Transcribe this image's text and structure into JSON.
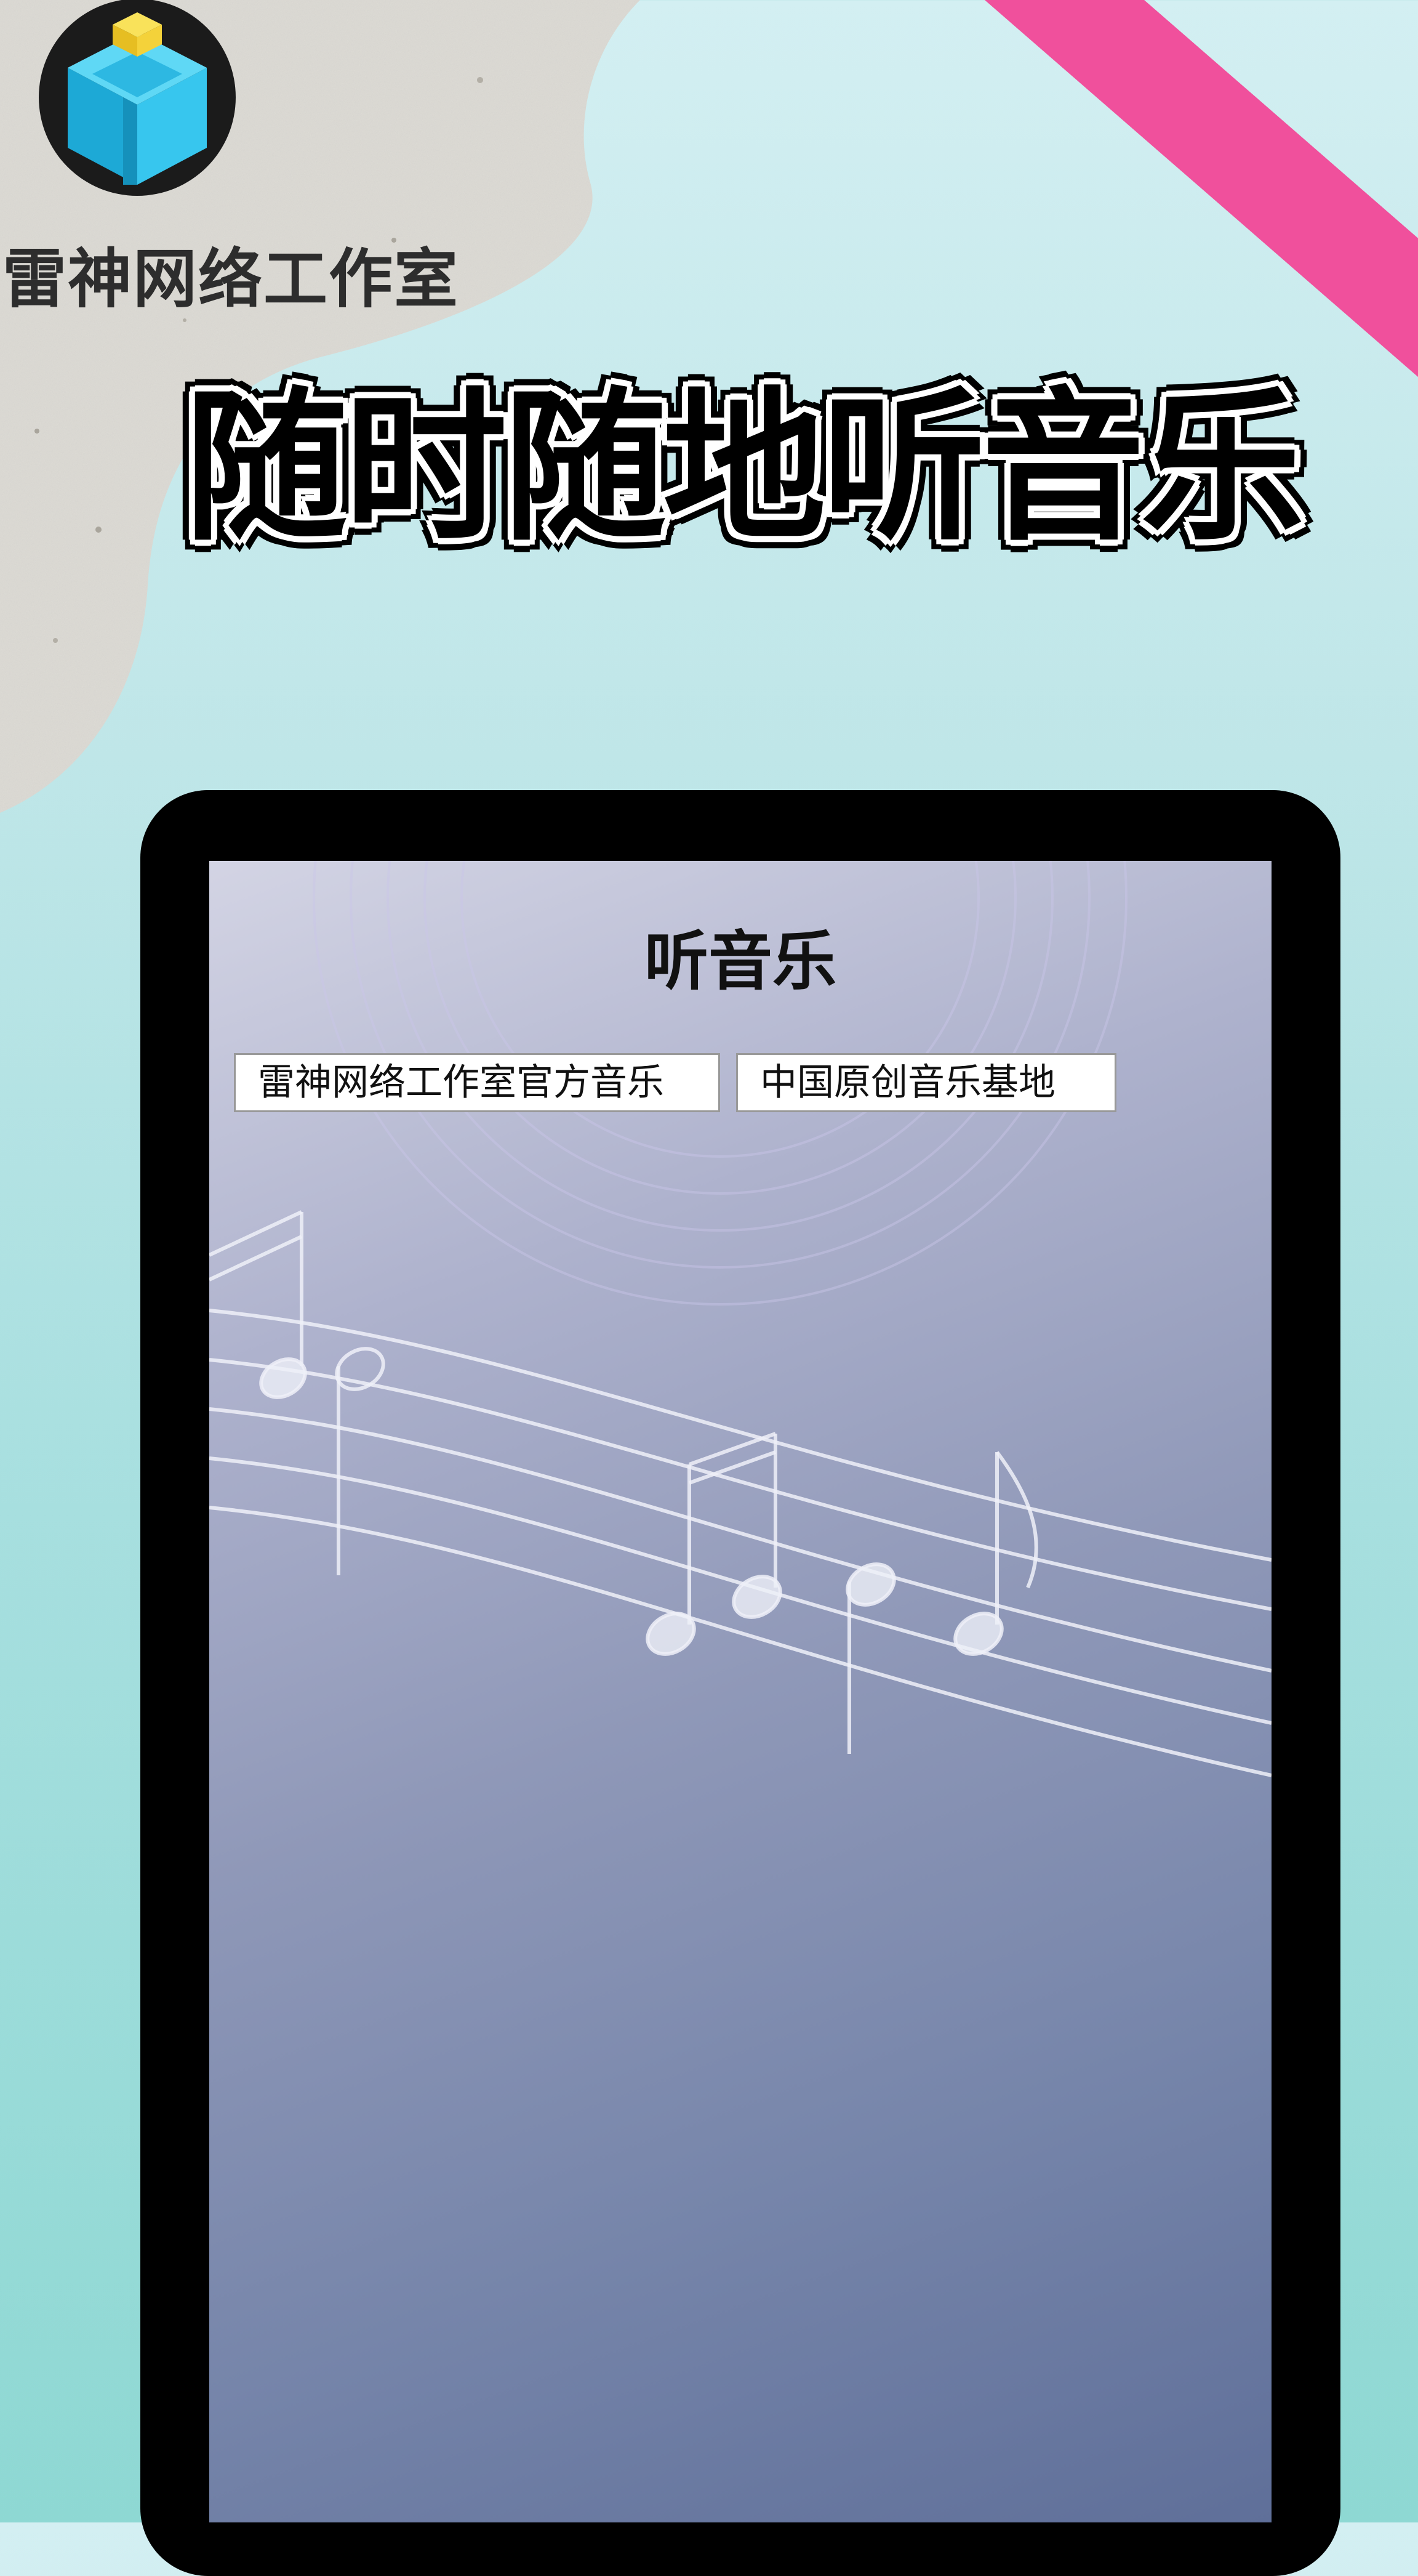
{
  "app": {
    "studio_name": "雷神网络工作室",
    "headline": "随时随地听音乐"
  },
  "screen": {
    "title": "听音乐",
    "links": [
      {
        "label": "雷神网络工作室官方音乐"
      },
      {
        "label": "中国原创音乐基地"
      }
    ]
  },
  "icons": {
    "logo": "cube-logo-icon",
    "music_staff": "music-notes-illustration"
  },
  "colors": {
    "background_top": "#d3eff2",
    "background_bottom": "#8ed8d3",
    "stripe": "#f0509c",
    "stone": "#dedcd6",
    "tablet_frame": "#000000",
    "screen_gradient_start": "#d3d4e4",
    "screen_gradient_end": "#5f6f99",
    "logo_cube": "#2fc4e8",
    "logo_top": "#f6d63a"
  }
}
